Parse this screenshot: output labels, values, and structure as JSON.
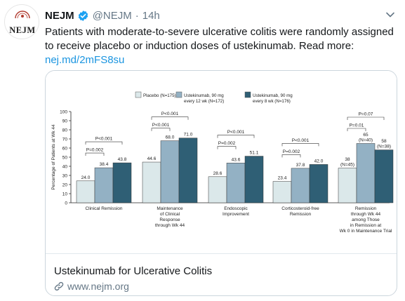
{
  "tweet": {
    "avatar_text": "NEJM",
    "display_name": "NEJM",
    "handle": "@NEJM",
    "separator": "·",
    "time": "14h",
    "text_lines": [
      "Patients with moderate-to-severe ulcerative colitis were randomly assigned",
      "to receive placebo or induction doses of ustekinumab. Read more:"
    ],
    "link": "nej.md/2mFS8su"
  },
  "card": {
    "title": "Ustekinumab for Ulcerative Colitis",
    "domain": "www.nejm.org"
  },
  "colors": {
    "placebo": "#dbe8ea",
    "q12": "#93b1c4",
    "q8": "#2f5f75",
    "link": "#1b95e0",
    "verified": "#1da1f2"
  },
  "icons": {
    "verified": "verified-badge-icon",
    "more": "chevron-down-icon",
    "link": "link-icon"
  },
  "chart_data": {
    "type": "bar",
    "ylabel": "Percentage of Patients at Wk 44",
    "ylim": [
      0,
      100
    ],
    "yticks": [
      0,
      10,
      20,
      30,
      40,
      50,
      60,
      70,
      80,
      90,
      100
    ],
    "legend": [
      {
        "label": "Placebo (N=175)",
        "label2": ""
      },
      {
        "label": "Ustekinumab, 90 mg",
        "label2": "every 12 wk (N=172)"
      },
      {
        "label": "Ustekinumab, 90 mg",
        "label2": "every 8 wk (N=176)"
      }
    ],
    "categories": [
      [
        "Clinical Remission"
      ],
      [
        "Maintenance",
        "of Clinical",
        "Response",
        "through Wk 44"
      ],
      [
        "Endoscopic",
        "Improvement"
      ],
      [
        "Corticosteroid-free",
        "Remission"
      ],
      [
        "Remission",
        "through Wk 44",
        "among Those",
        "in Remission at",
        "Wk 0 in Maintenance Trial"
      ]
    ],
    "series": [
      {
        "name": "Placebo (N=175)",
        "values": [
          24.0,
          44.6,
          28.6,
          23.4,
          38
        ]
      },
      {
        "name": "Ustekinumab, 90 mg every 12 wk (N=172)",
        "values": [
          38.4,
          68.0,
          43.6,
          37.8,
          65
        ]
      },
      {
        "name": "Ustekinumab, 90 mg every 8 wk (N=176)",
        "values": [
          43.8,
          71.0,
          51.1,
          42.0,
          58
        ]
      }
    ],
    "value_labels": [
      [
        [
          "24.0"
        ],
        [
          "38.4"
        ],
        [
          "43.8"
        ]
      ],
      [
        [
          "44.6"
        ],
        [
          "68.0"
        ],
        [
          "71.0"
        ]
      ],
      [
        [
          "28.6"
        ],
        [
          "43.6"
        ],
        [
          "51.1"
        ]
      ],
      [
        [
          "23.4"
        ],
        [
          "37.8"
        ],
        [
          "42.0"
        ]
      ],
      [
        [
          "38",
          "(N=45)"
        ],
        [
          "65",
          "(N=40)"
        ],
        [
          "58",
          "(N=38)"
        ]
      ]
    ],
    "comparisons": [
      {
        "group": 0,
        "to": 1,
        "label": "P=0.002"
      },
      {
        "group": 0,
        "to": 2,
        "label": "P<0.001"
      },
      {
        "group": 1,
        "to": 1,
        "label": "P<0.001"
      },
      {
        "group": 1,
        "to": 2,
        "label": "P<0.001"
      },
      {
        "group": 2,
        "to": 1,
        "label": "P=0.002"
      },
      {
        "group": 2,
        "to": 2,
        "label": "P<0.001"
      },
      {
        "group": 3,
        "to": 1,
        "label": "P=0.002"
      },
      {
        "group": 3,
        "to": 2,
        "label": "P<0.001"
      },
      {
        "group": 4,
        "to": 1,
        "label": "P=0.01"
      },
      {
        "group": 4,
        "to": 2,
        "label": "P=0.07"
      }
    ]
  }
}
